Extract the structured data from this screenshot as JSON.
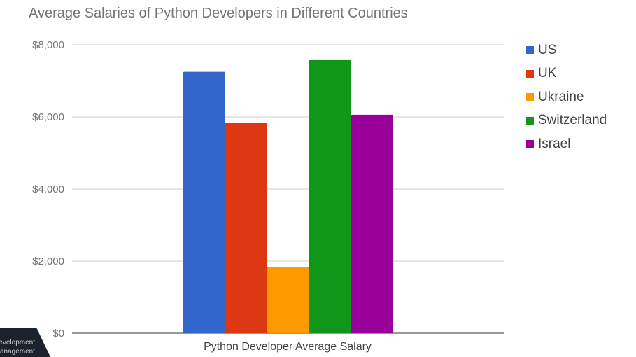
{
  "chart_data": {
    "type": "bar",
    "title": "Average Salaries of Python Developers in Different Countries",
    "xlabel": "Python Developer Average Salary",
    "ylabel": "",
    "categories": [
      "Python Developer Average Salary"
    ],
    "series": [
      {
        "name": "US",
        "values": [
          7250
        ],
        "color": "#3366cc"
      },
      {
        "name": "UK",
        "values": [
          5835
        ],
        "color": "#dc3912"
      },
      {
        "name": "Ukraine",
        "values": [
          1845
        ],
        "color": "#ff9900"
      },
      {
        "name": "Switzerland",
        "values": [
          7575
        ],
        "color": "#109618"
      },
      {
        "name": "Israel",
        "values": [
          6060
        ],
        "color": "#990099"
      }
    ],
    "ylim": [
      0,
      8000
    ],
    "yticks": [
      0,
      2000,
      4000,
      6000,
      8000
    ],
    "ytick_labels": [
      "$0",
      "$2,000",
      "$4,000",
      "$6,000",
      "$8,000"
    ],
    "grid": true,
    "legend_position": "right"
  },
  "badge": {
    "line1": "Development",
    "line2": "Management"
  }
}
